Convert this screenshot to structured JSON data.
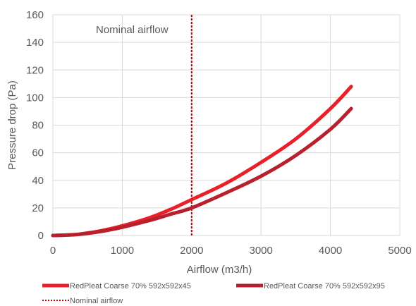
{
  "chart_data": {
    "type": "line",
    "xlabel": "Airflow (m3/h)",
    "ylabel": "Pressure drop (Pa)",
    "xlim": [
      0,
      5000
    ],
    "ylim": [
      0,
      160
    ],
    "x_ticks": [
      "0",
      "1000",
      "2000",
      "3000",
      "4000",
      "5000"
    ],
    "y_ticks": [
      "0",
      "20",
      "40",
      "60",
      "80",
      "100",
      "120",
      "140",
      "160"
    ],
    "grid": true,
    "legend_position": "bottom",
    "series": [
      {
        "name": "RedPleat Coarse 70% 592x592x45",
        "color": "#e8202a",
        "x": [
          0,
          350,
          700,
          1000,
          1400,
          1700,
          2000,
          2500,
          3000,
          3500,
          4000,
          4300
        ],
        "y": [
          0,
          0.8,
          3.5,
          7,
          13,
          19,
          26,
          38,
          53,
          70,
          92,
          108
        ]
      },
      {
        "name": "RedPleat Coarse 70% 592x592x95",
        "color": "#b7202c",
        "x": [
          0,
          350,
          700,
          1000,
          1400,
          1700,
          2000,
          2500,
          3000,
          3500,
          4000,
          4300
        ],
        "y": [
          0,
          0.7,
          3,
          6,
          11,
          15.5,
          20,
          31,
          43,
          58,
          77,
          92
        ]
      }
    ],
    "reference_line": {
      "name": "Nominal airflow",
      "x": 2000,
      "color": "#c00000"
    },
    "annotations": [
      {
        "text": "Nominal airflow"
      }
    ]
  }
}
